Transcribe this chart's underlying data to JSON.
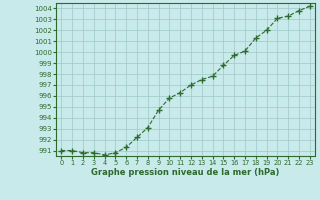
{
  "x": [
    0,
    1,
    2,
    3,
    4,
    5,
    6,
    7,
    8,
    9,
    10,
    11,
    12,
    13,
    14,
    15,
    16,
    17,
    18,
    19,
    20,
    21,
    22,
    23
  ],
  "y": [
    991.0,
    991.0,
    990.8,
    990.8,
    990.6,
    990.8,
    991.3,
    992.2,
    993.1,
    994.7,
    995.8,
    996.3,
    997.0,
    997.5,
    997.8,
    998.8,
    999.7,
    1000.1,
    1001.3,
    1002.0,
    1003.1,
    1003.3,
    1003.8,
    1004.2
  ],
  "line_color": "#2d6a2d",
  "marker_color": "#2d6a2d",
  "bg_color": "#c8eaea",
  "grid_color": "#9fc8c8",
  "xlabel": "Graphe pression niveau de la mer (hPa)",
  "xlabel_color": "#2d6a2d",
  "tick_color": "#2d6a2d",
  "axis_color": "#2d6a2d",
  "ylim": [
    990.5,
    1004.5
  ],
  "xlim": [
    -0.5,
    23.5
  ],
  "yticks": [
    991,
    992,
    993,
    994,
    995,
    996,
    997,
    998,
    999,
    1000,
    1001,
    1002,
    1003,
    1004
  ],
  "xticks": [
    0,
    1,
    2,
    3,
    4,
    5,
    6,
    7,
    8,
    9,
    10,
    11,
    12,
    13,
    14,
    15,
    16,
    17,
    18,
    19,
    20,
    21,
    22,
    23
  ]
}
